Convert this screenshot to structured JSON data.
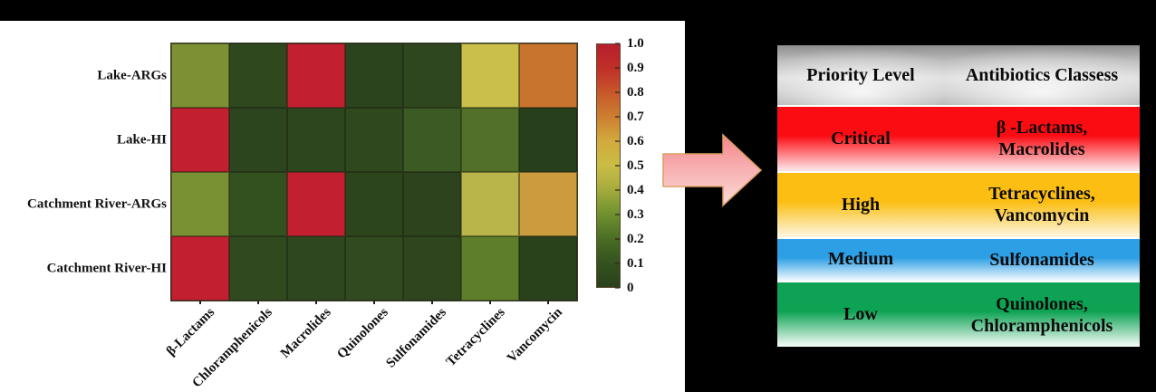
{
  "chart_data": {
    "type": "heatmap",
    "rows": [
      "Lake-ARGs",
      "Lake-HI",
      "Catchment River-ARGs",
      "Catchment River-HI"
    ],
    "columns": [
      "β-Lactams",
      "Chloramphenicols",
      "Macrolides",
      "Quinolones",
      "Sulfonamides",
      "Tetracyclines",
      "Vancomycin"
    ],
    "values": [
      [
        0.33,
        0.05,
        0.97,
        0.04,
        0.05,
        0.48,
        0.72
      ],
      [
        0.97,
        0.04,
        0.04,
        0.05,
        0.12,
        0.18,
        0.02
      ],
      [
        0.32,
        0.08,
        0.97,
        0.04,
        0.04,
        0.43,
        0.58
      ],
      [
        0.97,
        0.06,
        0.05,
        0.06,
        0.04,
        0.22,
        0.05
      ]
    ],
    "value_range": [
      0,
      1
    ],
    "cell_colors": [
      [
        "#7d9134",
        "#2f481e",
        "#c22031",
        "#2c441d",
        "#2e471e",
        "#c9bf4a",
        "#c8742e"
      ],
      [
        "#c21f30",
        "#2d451e",
        "#2e461e",
        "#2f481e",
        "#3b5a24",
        "#52702a",
        "#283f1b"
      ],
      [
        "#7a9133",
        "#33511f",
        "#c22031",
        "#2d451d",
        "#2c431d",
        "#b9b54a",
        "#ca9c3d"
      ],
      [
        "#c21f30",
        "#30491f",
        "#2e471e",
        "#314a1f",
        "#2e451e",
        "#5f7e2b",
        "#2a421c"
      ]
    ],
    "colorbar": {
      "tick_labels": [
        "1.0",
        "0.9",
        "0.8",
        "0.7",
        "0.6",
        "0.5",
        "0.4",
        "0.3",
        "0.2",
        "0.1",
        "0"
      ],
      "gradient_top_to_bottom": [
        {
          "pos": 0,
          "color": "#b81f2e"
        },
        {
          "pos": 10,
          "color": "#c02f28"
        },
        {
          "pos": 20,
          "color": "#c7582b"
        },
        {
          "pos": 30,
          "color": "#cd7f30"
        },
        {
          "pos": 40,
          "color": "#d2aa3d"
        },
        {
          "pos": 50,
          "color": "#c9bd45"
        },
        {
          "pos": 55,
          "color": "#b9b443"
        },
        {
          "pos": 60,
          "color": "#a3ab3c"
        },
        {
          "pos": 70,
          "color": "#6f9130"
        },
        {
          "pos": 80,
          "color": "#4a6e24"
        },
        {
          "pos": 90,
          "color": "#35521f"
        },
        {
          "pos": 100,
          "color": "#2a411c"
        }
      ]
    },
    "legend_position": "right"
  },
  "arrow": {
    "direction": "right",
    "fill_top": "#f4878b",
    "fill_bottom": "#fcdcda",
    "outline": "#dc9e62"
  },
  "table": {
    "headers": [
      "Priority Level",
      "Antibiotics Classess"
    ],
    "rows": [
      {
        "level": "Critical",
        "classes_lines": [
          "β -Lactams,",
          "Macrolides"
        ],
        "top_color": "#fb0c12",
        "bottom_color": "#fddfe2"
      },
      {
        "level": "High",
        "classes_lines": [
          "Tetracyclines,",
          "Vancomycin"
        ],
        "top_color": "#fcbe13",
        "bottom_color": "#fdf4d9"
      },
      {
        "level": "Medium",
        "classes_lines": [
          "Sulfonamides"
        ],
        "top_color": "#2d9fe5",
        "bottom_color": "#eaf6fd"
      },
      {
        "level": "Low",
        "classes_lines": [
          "Quinolones,",
          "Chloramphenicols"
        ],
        "top_color": "#0ea354",
        "bottom_color": "#ebf7f0"
      }
    ]
  }
}
